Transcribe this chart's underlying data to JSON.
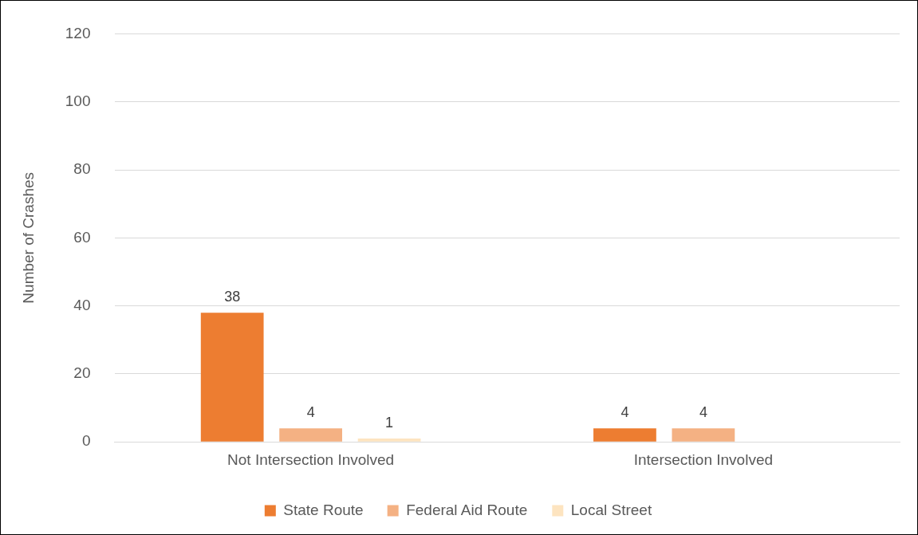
{
  "chart_data": {
    "type": "bar",
    "ylabel": "Number of Crashes",
    "categories": [
      "Not Intersection Involved",
      "Intersection Involved"
    ],
    "series": [
      {
        "name": "State Route",
        "color": "#ed7d31",
        "values": [
          38,
          4
        ]
      },
      {
        "name": "Federal Aid Route",
        "color": "#f4b183",
        "values": [
          4,
          4
        ]
      },
      {
        "name": "Local Street",
        "color": "#fde4c0",
        "values": [
          1,
          null
        ]
      }
    ],
    "ylim": [
      0,
      120
    ],
    "yticks": [
      0,
      20,
      40,
      60,
      80,
      100,
      120
    ],
    "grid": "y",
    "legend": "bottom",
    "data_labels": true
  }
}
